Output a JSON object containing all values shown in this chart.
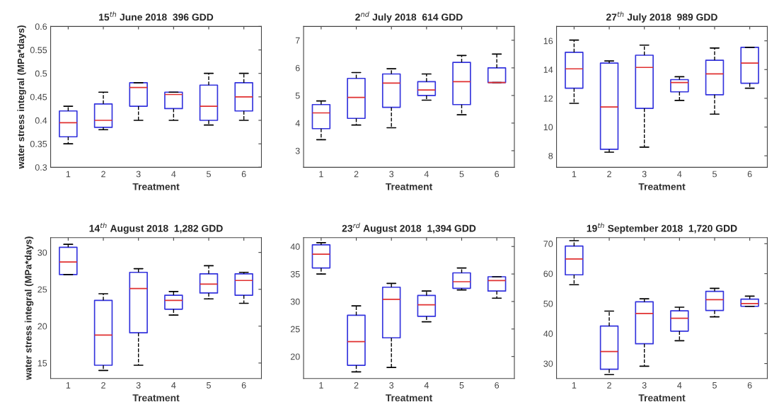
{
  "chart_data": [
    {
      "type": "box",
      "title": "15$^{th}$ June 2018  396 GDD",
      "xlabel": "Treatment",
      "ylabel": "water stress integral (MPa*days)",
      "categories": [
        "1",
        "2",
        "3",
        "4",
        "5",
        "6"
      ],
      "ylim": [
        0.3,
        0.6
      ],
      "yticks": [
        0.3,
        0.35,
        0.4,
        0.45,
        0.5,
        0.55,
        0.6
      ],
      "grid": false,
      "legend": false,
      "series": [
        {
          "color": "#3333dd",
          "boxes": [
            {
              "low": 0.35,
              "q1": 0.365,
              "median": 0.395,
              "q3": 0.42,
              "high": 0.43
            },
            {
              "low": 0.38,
              "q1": 0.385,
              "median": 0.4,
              "q3": 0.435,
              "high": 0.46
            },
            {
              "low": 0.4,
              "q1": 0.43,
              "median": 0.47,
              "q3": 0.48,
              "high": 0.48
            },
            {
              "low": 0.4,
              "q1": 0.425,
              "median": 0.455,
              "q3": 0.46,
              "high": 0.46
            },
            {
              "low": 0.39,
              "q1": 0.4,
              "median": 0.43,
              "q3": 0.475,
              "high": 0.5
            },
            {
              "low": 0.4,
              "q1": 0.42,
              "median": 0.45,
              "q3": 0.48,
              "high": 0.5
            }
          ]
        }
      ]
    },
    {
      "type": "box",
      "title": "2$^{nd}$ July 2018  614 GDD",
      "xlabel": "Treatment",
      "categories": [
        "1",
        "2",
        "3",
        "4",
        "5",
        "6"
      ],
      "ylim": [
        2.4,
        7.5
      ],
      "yticks": [
        3,
        4,
        5,
        6,
        7
      ],
      "grid": false,
      "legend": false,
      "series": [
        {
          "color": "#3333dd",
          "boxes": [
            {
              "low": 3.4,
              "q1": 3.8,
              "median": 4.37,
              "q3": 4.67,
              "high": 4.8
            },
            {
              "low": 3.93,
              "q1": 4.17,
              "median": 4.93,
              "q3": 5.62,
              "high": 5.83
            },
            {
              "low": 3.83,
              "q1": 4.57,
              "median": 5.45,
              "q3": 5.78,
              "high": 5.97
            },
            {
              "low": 4.83,
              "q1": 5.0,
              "median": 5.2,
              "q3": 5.5,
              "high": 5.78
            },
            {
              "low": 4.3,
              "q1": 4.67,
              "median": 5.5,
              "q3": 6.2,
              "high": 6.45
            },
            {
              "low": 5.47,
              "q1": 5.47,
              "median": 5.47,
              "q3": 6.0,
              "high": 6.5
            }
          ]
        }
      ]
    },
    {
      "type": "box",
      "title": "27$^{th}$ July 2018  989 GDD",
      "xlabel": "Treatment",
      "categories": [
        "1",
        "2",
        "3",
        "4",
        "5",
        "6"
      ],
      "ylim": [
        7.2,
        17
      ],
      "yticks": [
        8,
        10,
        12,
        14,
        16
      ],
      "grid": false,
      "legend": false,
      "series": [
        {
          "color": "#3333dd",
          "boxes": [
            {
              "low": 11.65,
              "q1": 12.7,
              "median": 14.05,
              "q3": 15.2,
              "high": 16.05
            },
            {
              "low": 8.25,
              "q1": 8.45,
              "median": 11.4,
              "q3": 14.45,
              "high": 14.6
            },
            {
              "low": 8.6,
              "q1": 11.3,
              "median": 14.15,
              "q3": 15.0,
              "high": 15.7
            },
            {
              "low": 11.85,
              "q1": 12.45,
              "median": 13.1,
              "q3": 13.3,
              "high": 13.5
            },
            {
              "low": 10.9,
              "q1": 12.25,
              "median": 13.7,
              "q3": 14.65,
              "high": 15.5
            },
            {
              "low": 12.7,
              "q1": 13.05,
              "median": 14.45,
              "q3": 15.55,
              "high": 15.55
            }
          ]
        }
      ]
    },
    {
      "type": "box",
      "title": "14$^{th}$ August 2018  1,282 GDD",
      "xlabel": "Treatment",
      "ylabel": "water stress integral (MPa*days)",
      "categories": [
        "1",
        "2",
        "3",
        "4",
        "5",
        "6"
      ],
      "ylim": [
        12.9,
        32
      ],
      "yticks": [
        15,
        20,
        25,
        30
      ],
      "grid": false,
      "legend": false,
      "series": [
        {
          "color": "#3333dd",
          "boxes": [
            {
              "low": 27.0,
              "q1": 27.0,
              "median": 28.7,
              "q3": 30.7,
              "high": 31.1
            },
            {
              "low": 14.0,
              "q1": 14.7,
              "median": 18.8,
              "q3": 23.5,
              "high": 24.4
            },
            {
              "low": 14.7,
              "q1": 19.1,
              "median": 25.1,
              "q3": 27.3,
              "high": 27.8
            },
            {
              "low": 21.5,
              "q1": 22.3,
              "median": 23.5,
              "q3": 24.2,
              "high": 24.7
            },
            {
              "low": 23.7,
              "q1": 24.5,
              "median": 25.7,
              "q3": 27.1,
              "high": 28.2
            },
            {
              "low": 23.1,
              "q1": 24.2,
              "median": 26.2,
              "q3": 27.1,
              "high": 27.3
            }
          ]
        }
      ]
    },
    {
      "type": "box",
      "title": "23$^{rd}$ August 2018  1,394 GDD",
      "xlabel": "Treatment",
      "categories": [
        "1",
        "2",
        "3",
        "4",
        "5",
        "6"
      ],
      "ylim": [
        16,
        41.6
      ],
      "yticks": [
        20,
        25,
        30,
        35,
        40
      ],
      "grid": false,
      "legend": false,
      "series": [
        {
          "color": "#3333dd",
          "boxes": [
            {
              "low": 35.0,
              "q1": 36.1,
              "median": 38.6,
              "q3": 40.3,
              "high": 40.7
            },
            {
              "low": 17.2,
              "q1": 18.4,
              "median": 22.7,
              "q3": 27.5,
              "high": 29.2
            },
            {
              "low": 18.0,
              "q1": 23.4,
              "median": 30.4,
              "q3": 32.6,
              "high": 33.3
            },
            {
              "low": 26.3,
              "q1": 27.3,
              "median": 29.4,
              "q3": 31.1,
              "high": 31.9
            },
            {
              "low": 32.1,
              "q1": 32.4,
              "median": 33.6,
              "q3": 35.2,
              "high": 36.1
            },
            {
              "low": 30.6,
              "q1": 31.9,
              "median": 33.8,
              "q3": 34.5,
              "high": 34.5
            }
          ]
        }
      ]
    },
    {
      "type": "box",
      "title": "19$^{th}$ September 2018  1,720 GDD",
      "xlabel": "Treatment",
      "categories": [
        "1",
        "2",
        "3",
        "4",
        "5",
        "6"
      ],
      "ylim": [
        25,
        72
      ],
      "yticks": [
        30,
        40,
        50,
        60,
        70
      ],
      "grid": false,
      "legend": false,
      "series": [
        {
          "color": "#3333dd",
          "boxes": [
            {
              "low": 56.3,
              "q1": 59.6,
              "median": 64.9,
              "q3": 69.2,
              "high": 71.0
            },
            {
              "low": 26.3,
              "q1": 28.1,
              "median": 34.0,
              "q3": 42.5,
              "high": 47.5
            },
            {
              "low": 29.1,
              "q1": 36.6,
              "median": 46.7,
              "q3": 50.6,
              "high": 51.6
            },
            {
              "low": 37.6,
              "q1": 40.8,
              "median": 45.1,
              "q3": 47.6,
              "high": 48.8
            },
            {
              "low": 45.6,
              "q1": 47.7,
              "median": 51.3,
              "q3": 54.1,
              "high": 55.1
            },
            {
              "low": 49.1,
              "q1": 49.1,
              "median": 50.0,
              "q3": 51.5,
              "high": 52.5
            }
          ]
        }
      ]
    }
  ]
}
